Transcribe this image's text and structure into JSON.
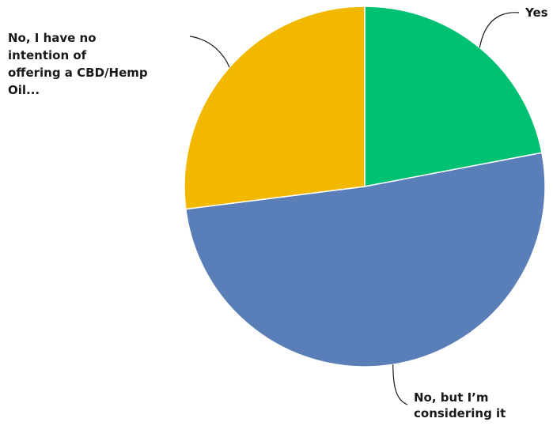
{
  "chart_data": {
    "type": "pie",
    "title": "",
    "start_angle_deg": 0,
    "direction": "clockwise",
    "slices": [
      {
        "label": "Yes",
        "label_lines": [
          "Yes"
        ],
        "value": 22,
        "color": "#00c071"
      },
      {
        "label": "No, but I’m considering it",
        "label_lines": [
          "No, but I’m",
          "considering it"
        ],
        "value": 51,
        "color": "#5a7fb8"
      },
      {
        "label": "No, I have no intention of offering a CBD/Hemp Oil...",
        "label_lines": [
          "No, I have no",
          "intention of",
          "offering a CBD/Hemp",
          "Oil..."
        ],
        "value": 27,
        "color": "#f2b800"
      }
    ],
    "legend": "none",
    "data_labels": "category names outside slices with leader lines"
  }
}
